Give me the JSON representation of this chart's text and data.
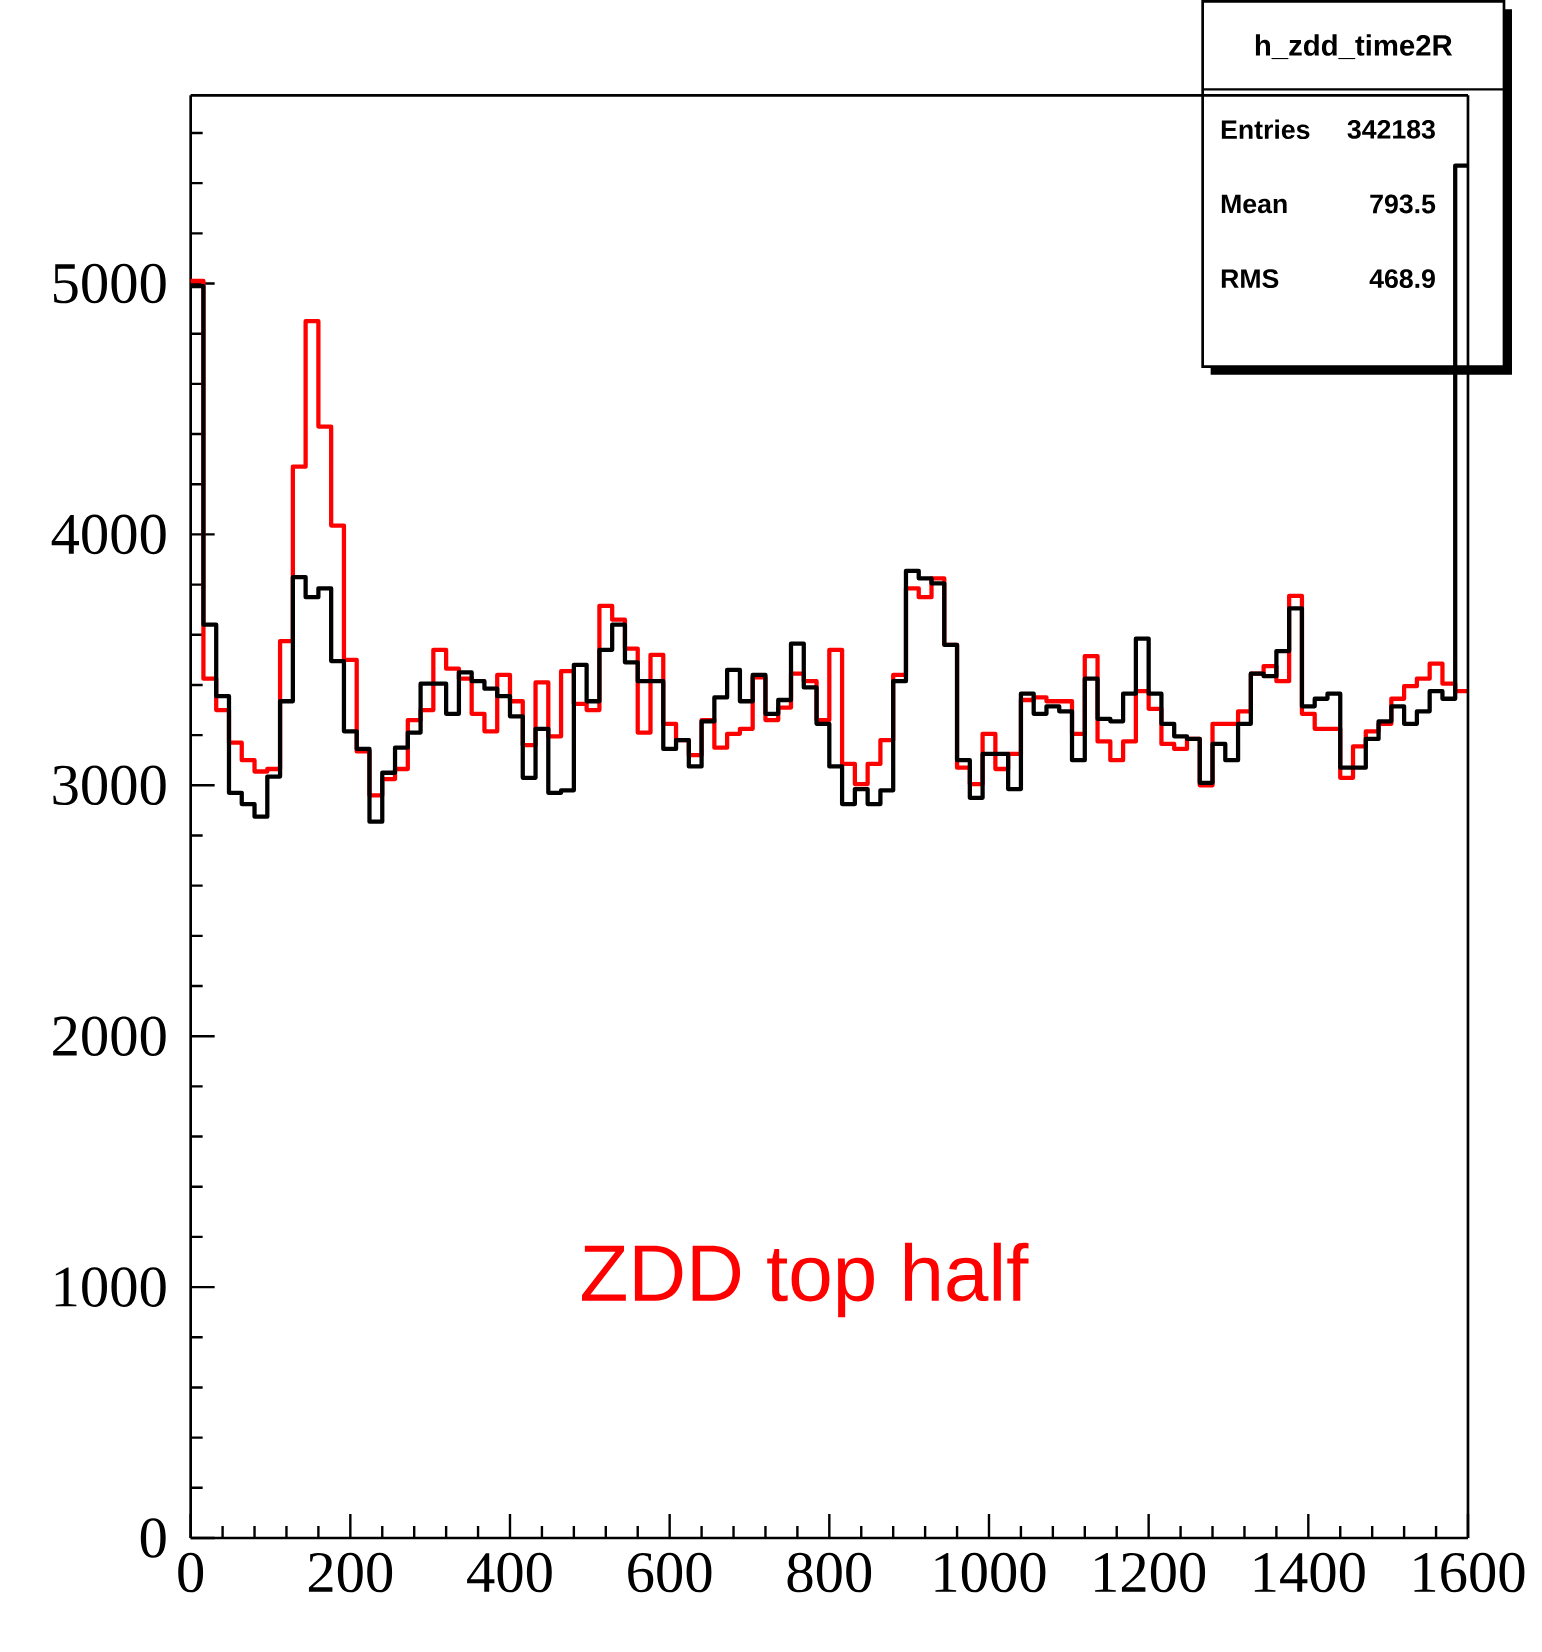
{
  "chart_data": {
    "type": "histogram",
    "bins": [
      0,
      16,
      32,
      48,
      64,
      80,
      96,
      112,
      128,
      144,
      160,
      176,
      192,
      208,
      224,
      240,
      256,
      272,
      288,
      304,
      320,
      336,
      352,
      368,
      384,
      400,
      416,
      432,
      448,
      464,
      480,
      496,
      512,
      528,
      544,
      560,
      576,
      592,
      608,
      624,
      640,
      656,
      672,
      688,
      704,
      720,
      736,
      752,
      768,
      784,
      800,
      816,
      832,
      848,
      864,
      880,
      896,
      912,
      928,
      944,
      960,
      976,
      992,
      1008,
      1024,
      1040,
      1056,
      1072,
      1088,
      1104,
      1120,
      1136,
      1152,
      1168,
      1184,
      1200,
      1216,
      1232,
      1248,
      1264,
      1280,
      1296,
      1312,
      1328,
      1344,
      1360,
      1376,
      1392,
      1408,
      1424,
      1440,
      1456,
      1472,
      1488,
      1504,
      1520,
      1536,
      1552,
      1568,
      1584,
      1600
    ],
    "series": [
      {
        "color": "#ff0000",
        "values": [
          5010,
          3425,
          3300,
          3170,
          3100,
          3055,
          3065,
          3575,
          4270,
          4850,
          4430,
          4035,
          3500,
          3135,
          2960,
          3025,
          3065,
          3260,
          3300,
          3540,
          3465,
          3425,
          3285,
          3215,
          3440,
          3335,
          3160,
          3410,
          3195,
          3455,
          3325,
          3300,
          3715,
          3660,
          3545,
          3210,
          3520,
          3245,
          3180,
          3120,
          3260,
          3150,
          3205,
          3225,
          3430,
          3260,
          3310,
          3445,
          3415,
          3260,
          3540,
          3085,
          3005,
          3085,
          3180,
          3440,
          3785,
          3750,
          3825,
          3560,
          3070,
          3005,
          3205,
          3065,
          3125,
          3340,
          3350,
          3335,
          3335,
          3205,
          3515,
          3175,
          3100,
          3175,
          3375,
          3305,
          3165,
          3145,
          3185,
          3000,
          3245,
          3245,
          3295,
          3445,
          3475,
          3415,
          3755,
          3285,
          3225,
          3225,
          3030,
          3155,
          3215,
          3245,
          3345,
          3395,
          3425,
          3485,
          3405,
          3375
        ]
      },
      {
        "color": "#000000",
        "values": [
          4990,
          3640,
          3355,
          2970,
          2925,
          2875,
          3035,
          3335,
          3830,
          3750,
          3785,
          3495,
          3215,
          3145,
          2855,
          3050,
          3150,
          3210,
          3405,
          3405,
          3285,
          3450,
          3415,
          3385,
          3355,
          3275,
          3030,
          3225,
          2970,
          2980,
          3480,
          3335,
          3540,
          3640,
          3490,
          3415,
          3415,
          3145,
          3180,
          3075,
          3255,
          3350,
          3460,
          3335,
          3440,
          3285,
          3340,
          3565,
          3390,
          3245,
          3075,
          2925,
          2985,
          2925,
          2980,
          3415,
          3855,
          3825,
          3805,
          3560,
          3100,
          2950,
          3125,
          3125,
          2985,
          3365,
          3285,
          3315,
          3295,
          3100,
          3425,
          3265,
          3255,
          3365,
          3585,
          3365,
          3245,
          3195,
          3185,
          3010,
          3165,
          3100,
          3245,
          3445,
          3435,
          3535,
          3705,
          3315,
          3345,
          3365,
          3070,
          3070,
          3185,
          3255,
          3315,
          3245,
          3295,
          3375,
          3345,
          5470
        ]
      }
    ],
    "xlim": [
      0,
      1600
    ],
    "ylim": [
      0,
      5750
    ],
    "xticks": [
      0,
      {
        "value": 40,
        "label": null
      },
      {
        "value": 80,
        "label": null
      },
      {
        "value": 120,
        "label": null
      },
      {
        "value": 160,
        "label": null
      },
      200,
      {
        "value": 240,
        "label": null
      },
      {
        "value": 280,
        "label": null
      },
      {
        "value": 320,
        "label": null
      },
      {
        "value": 360,
        "label": null
      },
      400,
      {
        "value": 440,
        "label": null
      },
      {
        "value": 480,
        "label": null
      },
      {
        "value": 520,
        "label": null
      },
      {
        "value": 560,
        "label": null
      },
      600,
      {
        "value": 640,
        "label": null
      },
      {
        "value": 680,
        "label": null
      },
      {
        "value": 720,
        "label": null
      },
      {
        "value": 760,
        "label": null
      },
      800,
      {
        "value": 840,
        "label": null
      },
      {
        "value": 880,
        "label": null
      },
      {
        "value": 920,
        "label": null
      },
      {
        "value": 960,
        "label": null
      },
      1000,
      {
        "value": 1040,
        "label": null
      },
      {
        "value": 1080,
        "label": null
      },
      {
        "value": 1120,
        "label": null
      },
      {
        "value": 1160,
        "label": null
      },
      1200,
      {
        "value": 1240,
        "label": null
      },
      {
        "value": 1280,
        "label": null
      },
      {
        "value": 1320,
        "label": null
      },
      {
        "value": 1360,
        "label": null
      },
      1400,
      {
        "value": 1440,
        "label": null
      },
      {
        "value": 1480,
        "label": null
      },
      {
        "value": 1520,
        "label": null
      },
      {
        "value": 1560,
        "label": null
      },
      1600
    ],
    "yticks": [
      0,
      {
        "value": 200,
        "label": null
      },
      {
        "value": 400,
        "label": null
      },
      {
        "value": 600,
        "label": null
      },
      {
        "value": 800,
        "label": null
      },
      1000,
      {
        "value": 1200,
        "label": null
      },
      {
        "value": 1400,
        "label": null
      },
      {
        "value": 1600,
        "label": null
      },
      {
        "value": 1800,
        "label": null
      },
      2000,
      {
        "value": 2200,
        "label": null
      },
      {
        "value": 2400,
        "label": null
      },
      {
        "value": 2600,
        "label": null
      },
      {
        "value": 2800,
        "label": null
      },
      3000,
      {
        "value": 3200,
        "label": null
      },
      {
        "value": 3400,
        "label": null
      },
      {
        "value": 3600,
        "label": null
      },
      {
        "value": 3800,
        "label": null
      },
      4000,
      {
        "value": 4200,
        "label": null
      },
      {
        "value": 4400,
        "label": null
      },
      {
        "value": 4600,
        "label": null
      },
      {
        "value": 4800,
        "label": null
      },
      5000,
      {
        "value": 5200,
        "label": null
      },
      {
        "value": 5400,
        "label": null
      },
      {
        "value": 5600,
        "label": null
      }
    ],
    "annotations": [
      "h_zdd_time2R",
      "Entries",
      "342183",
      "Mean",
      "793.5",
      "RMS",
      "468.9",
      "ZDD top half"
    ]
  }
}
